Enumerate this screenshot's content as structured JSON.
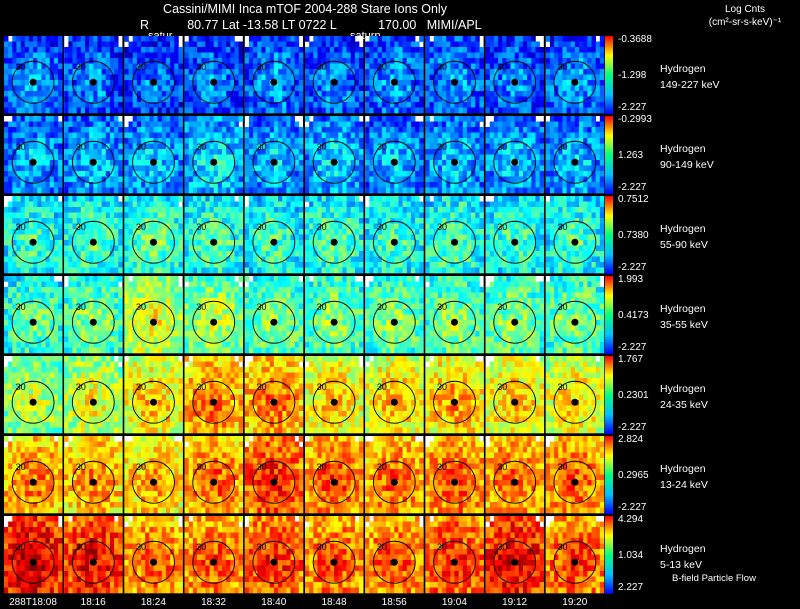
{
  "header": {
    "title_line1": "Cassini/MIMI Inca mTOF  2004-288    Stare    Ions Only",
    "title_line2": "R           80.77 Lat -13.58 LT 0722 L            170.00   MIMI/APL",
    "saturn_label_1": "satur",
    "saturn_label_2": "saturn",
    "units_title_1": "Log Cnts",
    "units_title_2": "(cm²-sr-s-keV)⁻¹"
  },
  "footer": {
    "bfield_label": "B-field Particle Flow"
  },
  "chart_data": {
    "type": "heatmap",
    "times": [
      "288T18:08",
      "18:16",
      "18:24",
      "18:32",
      "18:40",
      "18:48",
      "18:56",
      "19:04",
      "19:12",
      "19:20"
    ],
    "ring_label": "30",
    "rows": [
      {
        "species": "Hydrogen",
        "energy": "149-227 keV",
        "vmax": "-0.3688",
        "vmid": "-1.298",
        "vmin": "-2.227",
        "intensity": [
          0.22,
          0.2,
          0.18,
          0.2,
          0.22,
          0.2,
          0.22,
          0.22,
          0.2,
          0.22
        ]
      },
      {
        "species": "Hydrogen",
        "energy": "90-149 keV",
        "vmax": "-0.2993",
        "vmid": "1.263",
        "vmin": "-2.227",
        "intensity": [
          0.25,
          0.26,
          0.26,
          0.3,
          0.26,
          0.28,
          0.25,
          0.26,
          0.26,
          0.26
        ]
      },
      {
        "species": "Hydrogen",
        "energy": "55-90 keV",
        "vmax": "0.7512",
        "vmid": "0.7380",
        "vmin": "-2.227",
        "intensity": [
          0.38,
          0.4,
          0.42,
          0.4,
          0.38,
          0.4,
          0.38,
          0.4,
          0.38,
          0.38
        ]
      },
      {
        "species": "Hydrogen",
        "energy": "35-55 keV",
        "vmax": "1.993",
        "vmid": "0.4173",
        "vmin": "-2.227",
        "intensity": [
          0.42,
          0.45,
          0.55,
          0.5,
          0.45,
          0.45,
          0.45,
          0.45,
          0.45,
          0.45
        ]
      },
      {
        "species": "Hydrogen",
        "energy": "24-35 keV",
        "vmax": "1.767",
        "vmid": "0.2301",
        "vmin": "-2.227",
        "intensity": [
          0.5,
          0.55,
          0.62,
          0.7,
          0.7,
          0.62,
          0.62,
          0.65,
          0.62,
          0.6
        ]
      },
      {
        "species": "Hydrogen",
        "energy": "13-24 keV",
        "vmax": "2.824",
        "vmid": "0.2965",
        "vmin": "-2.227",
        "intensity": [
          0.7,
          0.68,
          0.65,
          0.72,
          0.78,
          0.74,
          0.72,
          0.74,
          0.72,
          0.72
        ]
      },
      {
        "species": "Hydrogen",
        "energy": "5-13 keV",
        "vmax": "4.294",
        "vmid": "1.034",
        "vmin": "2.227",
        "intensity": [
          0.86,
          0.82,
          0.72,
          0.74,
          0.78,
          0.74,
          0.74,
          0.78,
          0.84,
          0.76
        ]
      }
    ]
  }
}
